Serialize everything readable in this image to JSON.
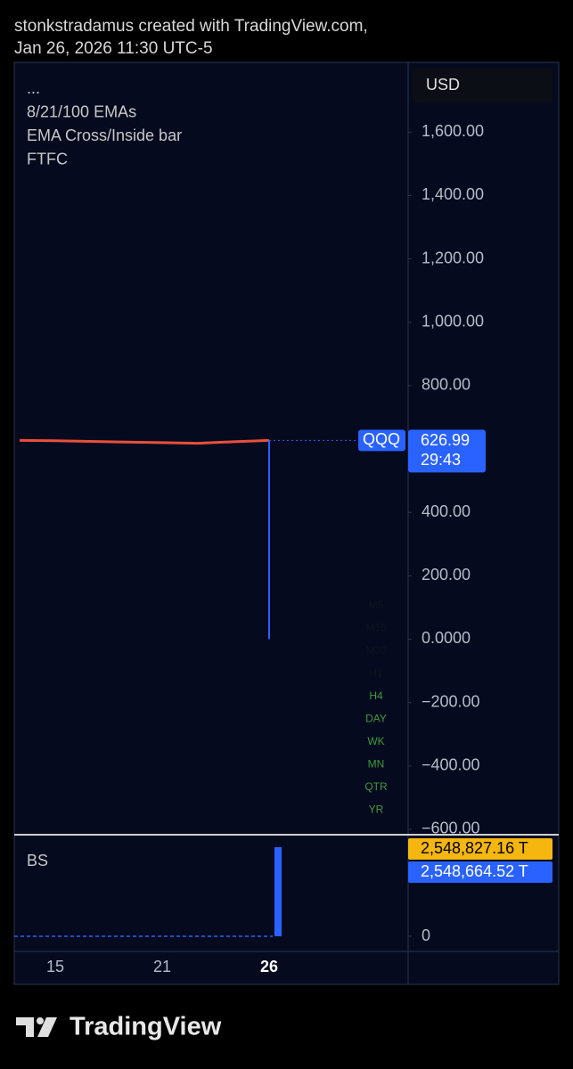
{
  "header": {
    "line1": "stonkstradamus created with TradingView.com,",
    "line2": "Jan 26, 2026 11:30 UTC-5"
  },
  "footer": {
    "brand": "TradingView"
  },
  "chart_data": [
    {
      "type": "line",
      "legend": [
        "...",
        "8/21/100 EMAs",
        "EMA Cross/Inside bar",
        "FTFC"
      ],
      "currency": "USD",
      "categories": [
        null,
        "15",
        null,
        null,
        "21",
        null,
        null,
        "26"
      ],
      "series": [
        {
          "name": "QQQ",
          "color": "#e8503a",
          "values": [
            627,
            626,
            624,
            622,
            620,
            618,
            623,
            627
          ]
        }
      ],
      "lows": [
        null,
        null,
        null,
        null,
        null,
        null,
        null,
        0
      ],
      "wick_color": "#2962ff",
      "last_price": {
        "value": 626.99,
        "label": "626.99",
        "countdown": "29:43",
        "color": "#2962ff"
      },
      "ylim": [
        -617,
        1820
      ],
      "yticks": [
        {
          "value": 1600,
          "label": "1,600.00"
        },
        {
          "value": 1400,
          "label": "1,400.00"
        },
        {
          "value": 1200,
          "label": "1,200.00"
        },
        {
          "value": 1000,
          "label": "1,000.00"
        },
        {
          "value": 800,
          "label": "800.00"
        },
        {
          "value": 400,
          "label": "400.00"
        },
        {
          "value": 200,
          "label": "200.00"
        },
        {
          "value": 0,
          "label": "0.0000"
        },
        {
          "value": -200,
          "label": "−200.00"
        },
        {
          "value": -400,
          "label": "−400.00"
        },
        {
          "value": -600,
          "label": "−600.00"
        }
      ],
      "ftfc": [
        {
          "label": "M5",
          "color": "#10141c"
        },
        {
          "label": "M15",
          "color": "#10141c"
        },
        {
          "label": "M30",
          "color": "#10141c"
        },
        {
          "label": "H1",
          "color": "#10141c"
        },
        {
          "label": "H4",
          "color": "#3f9b3f"
        },
        {
          "label": "DAY",
          "color": "#3f9b3f"
        },
        {
          "label": "WK",
          "color": "#3f9b3f"
        },
        {
          "label": "MN",
          "color": "#3f9b3f"
        },
        {
          "label": "QTR",
          "color": "#3f9b3f"
        },
        {
          "label": "YR",
          "color": "#3f9b3f"
        }
      ]
    },
    {
      "type": "bar",
      "title": "BS",
      "color": "#2962ff",
      "values": [
        0,
        0,
        0,
        0,
        0,
        0,
        0,
        2548664.52
      ],
      "markers": [
        {
          "value": 2548827.16,
          "label": "2,548,827.16 T",
          "color": "#f5b70f"
        },
        {
          "value": 2548664.52,
          "label": "2,548,664.52 T",
          "color": "#2962ff"
        }
      ],
      "ylim": [
        0,
        2880000
      ],
      "yticks": [
        0
      ]
    }
  ]
}
